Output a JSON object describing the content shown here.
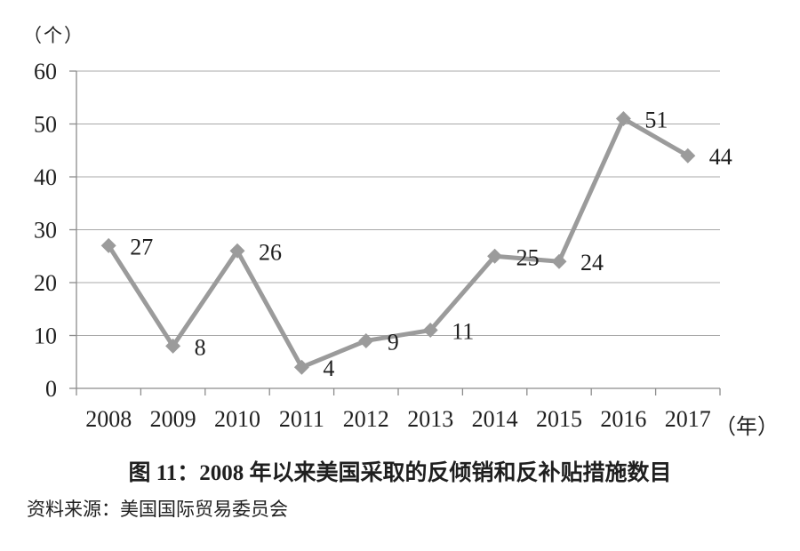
{
  "chart_data": {
    "type": "line",
    "title": "图 11：2008 年以来美国采取的反倾销和反补贴措施数目",
    "categories": [
      "2008",
      "2009",
      "2010",
      "2011",
      "2012",
      "2013",
      "2014",
      "2015",
      "2016",
      "2017"
    ],
    "values": [
      27,
      8,
      26,
      4,
      9,
      11,
      25,
      24,
      51,
      44
    ],
    "data_labels": [
      "27",
      "8",
      "26",
      "4",
      "9",
      "11",
      "25",
      "24",
      "51",
      "44"
    ],
    "y_unit": "（个）",
    "x_unit": "（年）",
    "xlabel": "",
    "ylabel": "",
    "ylim": [
      0,
      60
    ],
    "yticks": [
      0,
      10,
      20,
      30,
      40,
      50,
      60
    ],
    "grid": true,
    "legend": false,
    "marker": "diamond",
    "line_color": "#9b9b9b",
    "grid_color": "#a8a8a8",
    "axis_color": "#8c8c8c",
    "text_color": "#1f1f1f"
  },
  "source": "资料来源：美国国际贸易委员会"
}
